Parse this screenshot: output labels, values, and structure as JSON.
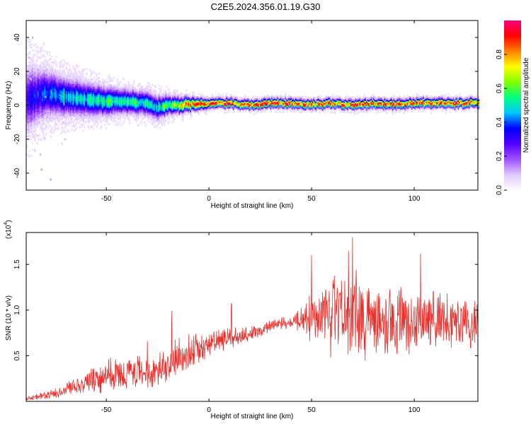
{
  "title": "C2E5.2024.356.01.19.G30",
  "chart_data": [
    {
      "type": "heatmap",
      "title": "C2E5.2024.356.01.19.G30",
      "xlabel": "Height of straight line (km)",
      "ylabel": "Frequency (Hz)",
      "xlim": [
        -89,
        131
      ],
      "ylim": [
        -50,
        50
      ],
      "xticks": [
        -50,
        0,
        50,
        100
      ],
      "yticks": [
        -40,
        -20,
        0,
        20,
        40
      ],
      "colorbar": {
        "label": "Normalized spectral amplitude",
        "range": [
          0.0,
          1.0
        ],
        "ticks": [
          0.0,
          0.2,
          0.4,
          0.6,
          0.8
        ],
        "tick_labels": [
          "0.0",
          "0.2",
          "0.4",
          "0.6",
          "0.8"
        ],
        "colormap": [
          "#ffffff",
          "#e0c8ff",
          "#a050ff",
          "#5000ff",
          "#0000ff",
          "#00c8ff",
          "#00ff80",
          "#80ff00",
          "#ffff00",
          "#ff8000",
          "#ff0000",
          "#ff0080"
        ]
      },
      "ridge": {
        "x": [
          -89,
          -80,
          -70,
          -60,
          -50,
          -40,
          -30,
          -25,
          -20,
          -10,
          0,
          10,
          20,
          30,
          40,
          50,
          60,
          70,
          80,
          90,
          100,
          110,
          120,
          131
        ],
        "center_hz": [
          3,
          7,
          5,
          3,
          2,
          2,
          1,
          -2,
          0,
          0,
          1,
          1,
          0,
          1,
          1,
          0,
          1,
          0,
          1,
          0,
          1,
          1,
          1,
          1
        ],
        "spread_hz": [
          14,
          10,
          8,
          7,
          6,
          5,
          5,
          5,
          4,
          3,
          2,
          2,
          2,
          2,
          2,
          2,
          2,
          2,
          2,
          2,
          2,
          2,
          2,
          2
        ],
        "peak_amplitude": [
          0.3,
          0.4,
          0.5,
          0.5,
          0.55,
          0.55,
          0.55,
          0.5,
          0.6,
          0.85,
          0.9,
          0.95,
          0.9,
          0.95,
          0.95,
          0.9,
          0.9,
          0.95,
          0.9,
          0.9,
          0.9,
          0.95,
          0.9,
          0.9
        ]
      }
    },
    {
      "type": "line",
      "xlabel": "Height of straight line (km)",
      "ylabel": "SNR (10 * v/v)",
      "y_multiplier": "(x10",
      "y_multiplier_exp": "4",
      "y_multiplier_close": ")",
      "xlim": [
        -89,
        131
      ],
      "ylim": [
        0,
        18500
      ],
      "xticks": [
        -50,
        0,
        50,
        100
      ],
      "yticks": [
        5000,
        10000,
        15000
      ],
      "ytick_labels": [
        "0.5",
        "1.0",
        "1.5"
      ],
      "line_color": "#e8302c",
      "series": [
        {
          "x": [
            -89,
            -80,
            -70,
            -60,
            -50,
            -40,
            -30,
            -20,
            -18,
            -10,
            0,
            10,
            20,
            30,
            40,
            45,
            50,
            55,
            60,
            65,
            70,
            75,
            80,
            90,
            100,
            110,
            120,
            131
          ],
          "trend": [
            300,
            600,
            1300,
            2000,
            2800,
            3000,
            3200,
            3800,
            4500,
            5200,
            6300,
            6900,
            7400,
            8300,
            8700,
            9000,
            9200,
            9300,
            9300,
            9300,
            9400,
            9300,
            9200,
            8800,
            8800,
            8800,
            8800,
            8700
          ],
          "spread": [
            300,
            500,
            900,
            1400,
            2000,
            2300,
            2300,
            2200,
            2600,
            2500,
            1500,
            1200,
            1000,
            800,
            700,
            1500,
            4000,
            4500,
            5000,
            5200,
            6000,
            5200,
            4800,
            4200,
            4000,
            3800,
            3500,
            3200
          ],
          "peaks": [
            {
              "x": 70,
              "y": 18000
            },
            {
              "x": 68,
              "y": 16500
            },
            {
              "x": 50,
              "y": 16000
            },
            {
              "x": 103,
              "y": 16200
            },
            {
              "x": -18,
              "y": 9900
            },
            {
              "x": 11,
              "y": 10700
            },
            {
              "x": -30,
              "y": 6600
            }
          ]
        }
      ]
    }
  ]
}
